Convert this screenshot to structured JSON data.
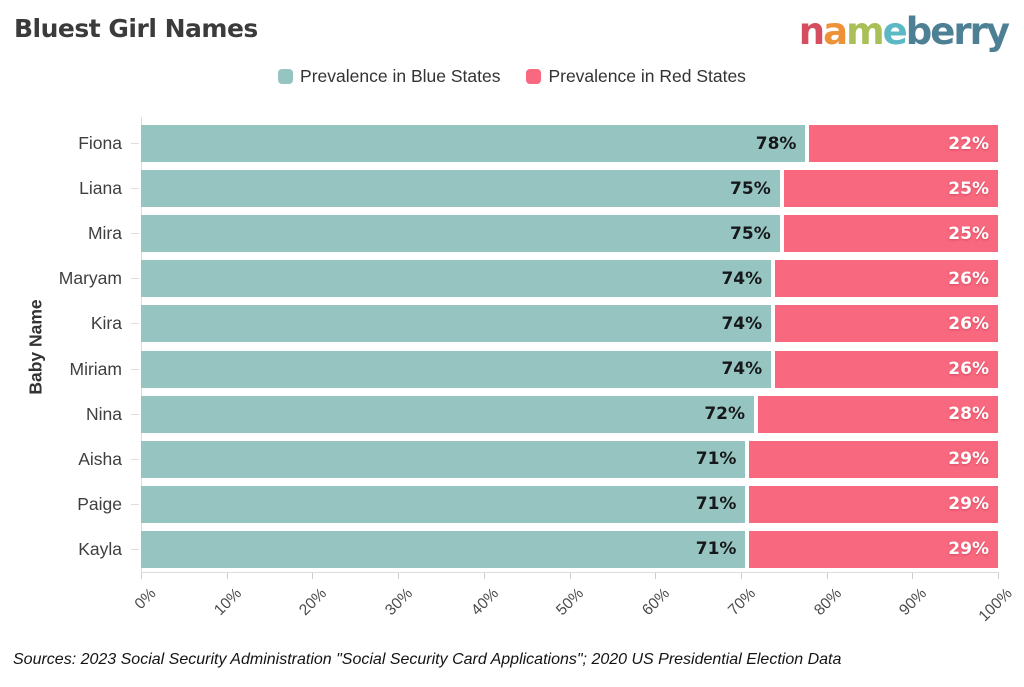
{
  "title": "Bluest Girl Names",
  "logo": {
    "text": "nameberry",
    "letters": [
      {
        "char": "n",
        "color": "#d44d60"
      },
      {
        "char": "a",
        "color": "#ee9238"
      },
      {
        "char": "m",
        "color": "#a9bf57"
      },
      {
        "char": "e",
        "color": "#5cb9c4"
      },
      {
        "char": "b",
        "color": "#4d8095"
      },
      {
        "char": "e",
        "color": "#4d8095"
      },
      {
        "char": "r",
        "color": "#4d8095"
      },
      {
        "char": "r",
        "color": "#4d8095"
      },
      {
        "char": "y",
        "color": "#4d8095"
      }
    ]
  },
  "legend": {
    "items": [
      {
        "label": "Prevalence in Blue States",
        "color": "#96c5c1"
      },
      {
        "label": "Prevalence in Red States",
        "color": "#f8687e"
      }
    ]
  },
  "chart_data": {
    "type": "bar",
    "orientation": "horizontal",
    "stacked": true,
    "categories": [
      "Fiona",
      "Liana",
      "Mira",
      "Maryam",
      "Kira",
      "Miriam",
      "Nina",
      "Aisha",
      "Paige",
      "Kayla"
    ],
    "series": [
      {
        "name": "Prevalence in Blue States",
        "color": "#96c5c1",
        "values": [
          78,
          75,
          75,
          74,
          74,
          74,
          72,
          71,
          71,
          71
        ]
      },
      {
        "name": "Prevalence in Red States",
        "color": "#f8687e",
        "values": [
          22,
          25,
          25,
          26,
          26,
          26,
          28,
          29,
          29,
          29
        ]
      }
    ],
    "value_suffix": "%",
    "ylabel": "Baby Name",
    "xlabel": "",
    "xlim": [
      0,
      100
    ],
    "xticks": [
      "0%",
      "10%",
      "20%",
      "30%",
      "40%",
      "50%",
      "60%",
      "70%",
      "80%",
      "90%",
      "100%"
    ],
    "grid": false,
    "legend_position": "top-center"
  },
  "source": "Sources: 2023 Social Security Administration \"Social Security Card Applications\"; 2020 US Presidential Election Data"
}
